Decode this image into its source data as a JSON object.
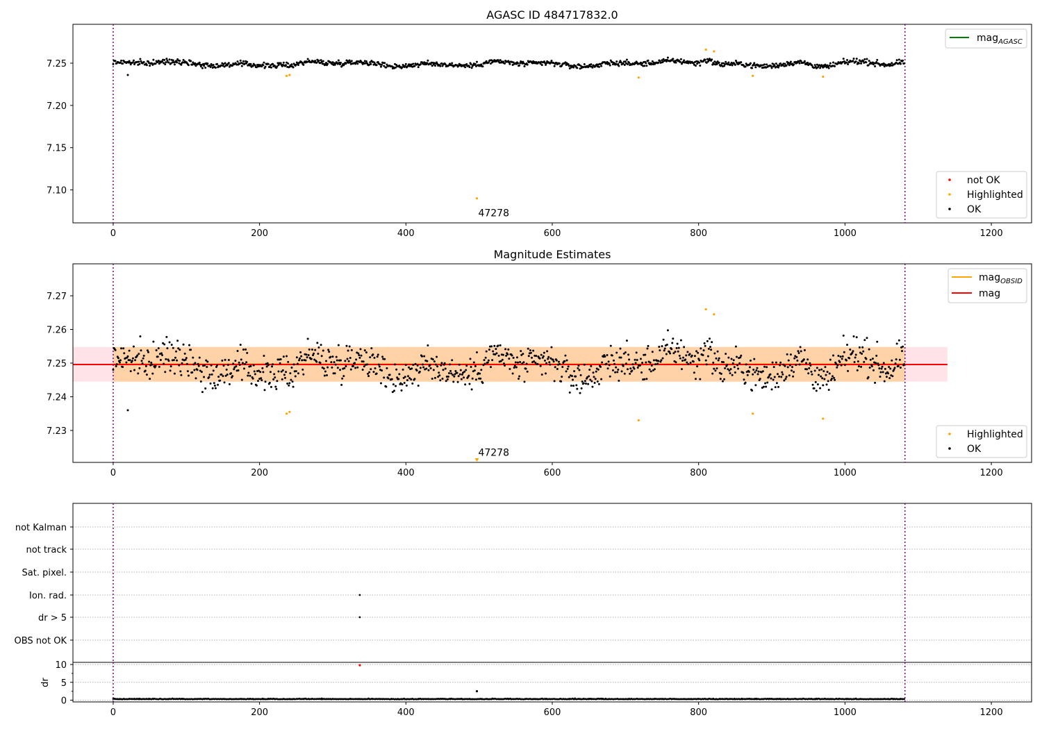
{
  "chart_data": [
    {
      "type": "scatter",
      "title": "AGASC ID 484717832.0",
      "xlim": [
        -55,
        1255
      ],
      "ylim": [
        7.061,
        7.296
      ],
      "xticks": [
        0,
        200,
        400,
        600,
        800,
        1000,
        1200
      ],
      "yticks": [
        7.1,
        7.15,
        7.2,
        7.25
      ],
      "ytick_labels": [
        "7.10",
        "7.15",
        "7.20",
        "7.25"
      ],
      "vlines": [
        0,
        1082
      ],
      "lines": [
        {
          "name": "mag_AGASC",
          "color": "#008000",
          "y": 7.25,
          "x_range": [
            0,
            1082
          ],
          "legend_only": true
        }
      ],
      "legend_lines": [
        {
          "label": "mag",
          "sub": "AGASC",
          "color": "#008000"
        }
      ],
      "legend_points": [
        {
          "label": "not OK",
          "color": "#ff0000"
        },
        {
          "label": "Highlighted",
          "color": "#ffa500"
        },
        {
          "label": "OK",
          "color": "#000000"
        }
      ],
      "series_ok": {
        "n": 1082,
        "baseline": 7.2495,
        "noise": 0.0035,
        "ok_color": "#000000"
      },
      "highlighted": [
        {
          "x": 237,
          "y": 7.235
        },
        {
          "x": 241,
          "y": 7.236
        },
        {
          "x": 497,
          "y": 7.09
        },
        {
          "x": 718,
          "y": 7.233
        },
        {
          "x": 810,
          "y": 7.266
        },
        {
          "x": 821,
          "y": 7.264
        },
        {
          "x": 874,
          "y": 7.235
        },
        {
          "x": 970,
          "y": 7.234
        }
      ],
      "annotation": {
        "text": "47278",
        "x": 520,
        "y": 7.069
      }
    },
    {
      "type": "scatter",
      "title": "Magnitude Estimates",
      "xlim": [
        -55,
        1255
      ],
      "ylim": [
        7.2205,
        7.2795
      ],
      "xticks": [
        0,
        200,
        400,
        600,
        800,
        1000,
        1200
      ],
      "yticks": [
        7.23,
        7.24,
        7.25,
        7.26,
        7.27
      ],
      "ytick_labels": [
        "7.23",
        "7.24",
        "7.25",
        "7.26",
        "7.27"
      ],
      "vlines": [
        0,
        1082
      ],
      "bands": [
        {
          "y0": 7.2445,
          "y1": 7.2548,
          "x0": -55,
          "x1": 1140,
          "color": "#ffc0cb",
          "opacity": 0.45
        },
        {
          "y0": 7.2445,
          "y1": 7.2548,
          "x0": 0,
          "x1": 1082,
          "color": "#ffa500",
          "opacity": 0.28
        }
      ],
      "lines": [
        {
          "name": "mag_OBSID",
          "color": "#ffa500",
          "y": 7.2497,
          "x_range": [
            0,
            1082
          ]
        },
        {
          "name": "mag",
          "color": "#ff0000",
          "y": 7.2496,
          "x_range": [
            -55,
            1140
          ]
        }
      ],
      "legend_lines": [
        {
          "label": "mag",
          "sub": "OBSID",
          "color": "#ffa500"
        },
        {
          "label": "mag",
          "sub": "",
          "color": "#ff0000"
        }
      ],
      "legend_points": [
        {
          "label": "Highlighted",
          "color": "#ffa500"
        },
        {
          "label": "OK",
          "color": "#000000"
        }
      ],
      "series_ok": {
        "n": 1082,
        "baseline": 7.2495,
        "noise": 0.0035,
        "ok_color": "#000000"
      },
      "highlighted": [
        {
          "x": 237,
          "y": 7.235
        },
        {
          "x": 241,
          "y": 7.2355
        },
        {
          "x": 718,
          "y": 7.233
        },
        {
          "x": 810,
          "y": 7.266
        },
        {
          "x": 821,
          "y": 7.2645
        },
        {
          "x": 874,
          "y": 7.235
        },
        {
          "x": 970,
          "y": 7.2335
        }
      ],
      "offscale_marker": {
        "x": 497,
        "color": "#ffa500"
      },
      "annotation": {
        "text": "47278",
        "x": 520,
        "y": 7.2225
      }
    },
    {
      "type": "scatter",
      "title": "",
      "xlim": [
        -55,
        1255
      ],
      "categories": [
        "not Kalman",
        "not track",
        "Sat. pixel.",
        "Ion. rad.",
        "dr > 5",
        "OBS not OK"
      ],
      "vlines": [
        0,
        1082
      ],
      "flag_points": [
        {
          "category": "Ion. rad.",
          "x": 337
        },
        {
          "category": "dr > 5",
          "x": 337
        }
      ]
    },
    {
      "type": "scatter",
      "title": "",
      "ylabel": "dr",
      "xlim": [
        -55,
        1255
      ],
      "ylim": [
        -0.5,
        10.6
      ],
      "xticks": [
        0,
        200,
        400,
        600,
        800,
        1000,
        1200
      ],
      "yticks": [
        0,
        5,
        10
      ],
      "ytick_labels": [
        "0",
        "5",
        "10"
      ],
      "vlines": [
        0,
        1082
      ],
      "series_ok": {
        "n": 1082,
        "baseline": 0.25,
        "noise": 0.12
      },
      "points": [
        {
          "x": 337,
          "y": 9.8,
          "color": "#ff0000"
        },
        {
          "x": 497,
          "y": 2.5,
          "color": "#000000"
        }
      ]
    }
  ]
}
